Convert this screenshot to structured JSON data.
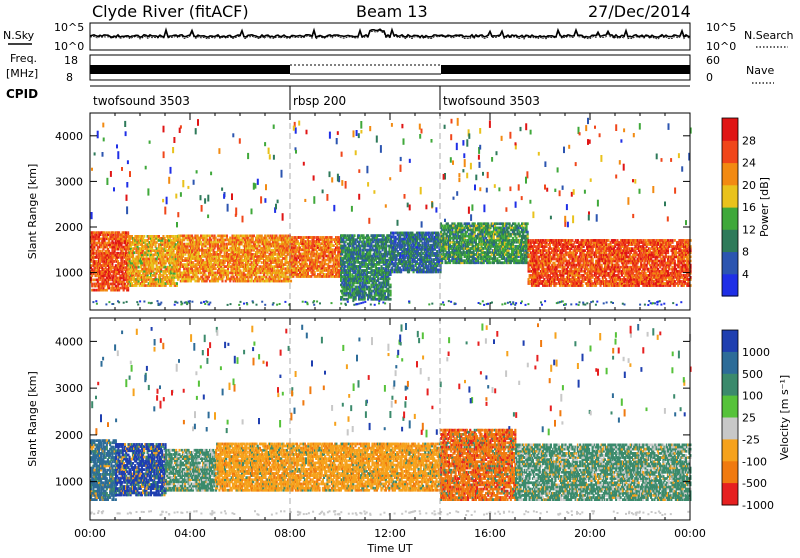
{
  "header": {
    "station": "Clyde River (fitACF)",
    "beam": "Beam 13",
    "date": "27/Dec/2014"
  },
  "noise_panel": {
    "left_label": "N.Sky",
    "left_ticks": [
      "10^5",
      "10^0"
    ],
    "right_ticks": [
      "10^5",
      "10^0"
    ],
    "right_label": "N.Search"
  },
  "freq_panel": {
    "left_label_line1": "Freq.",
    "left_label_line2": "[MHz]",
    "left_ticks": [
      "18",
      "8"
    ],
    "right_ticks": [
      "60",
      "0"
    ],
    "right_label": "Nave"
  },
  "cpid_panel": {
    "label": "CPID",
    "segments": [
      {
        "name": "twofsound 3503",
        "start_hour": 0,
        "end_hour": 8
      },
      {
        "name": "rbsp 200",
        "start_hour": 8,
        "end_hour": 14
      },
      {
        "name": "twofsound 3503",
        "start_hour": 14,
        "end_hour": 24
      }
    ]
  },
  "x_axis": {
    "label": "Time UT",
    "ticks": [
      "00:00",
      "04:00",
      "08:00",
      "12:00",
      "16:00",
      "20:00",
      "00:00"
    ]
  },
  "chart_data": [
    {
      "type": "heatmap",
      "title": "Power",
      "ylabel": "Slant Range [km]",
      "yticks": [
        "1000",
        "2000",
        "3000",
        "4000"
      ],
      "ylim": [
        180,
        4500
      ],
      "xlim_hours": [
        0,
        24
      ],
      "colorbar": {
        "label": "Power [dB]",
        "ticks": [
          "4",
          "8",
          "12",
          "16",
          "20",
          "24",
          "28"
        ],
        "range": [
          0,
          32
        ],
        "colors": [
          "#1f2fe6",
          "#2c55b0",
          "#2e7a5a",
          "#3fa83a",
          "#e9c21c",
          "#f28a12",
          "#f0461a",
          "#e01515"
        ]
      },
      "values": [
        {
          "start_hour": 0.0,
          "end_hour": 1.5,
          "range_km": [
            600,
            1900
          ],
          "level": 26
        },
        {
          "start_hour": 1.5,
          "end_hour": 3.5,
          "range_km": [
            700,
            1800
          ],
          "level": 20
        },
        {
          "start_hour": 3.5,
          "end_hour": 8.0,
          "range_km": [
            800,
            1800
          ],
          "level": 22
        },
        {
          "start_hour": 8.0,
          "end_hour": 10.0,
          "range_km": [
            900,
            1800
          ],
          "level": 24
        },
        {
          "start_hour": 10.0,
          "end_hour": 12.0,
          "range_km": [
            400,
            1800
          ],
          "level": 10
        },
        {
          "start_hour": 12.0,
          "end_hour": 14.0,
          "range_km": [
            1000,
            1900
          ],
          "level": 8
        },
        {
          "start_hour": 14.0,
          "end_hour": 17.5,
          "range_km": [
            1200,
            2100
          ],
          "level": 12
        },
        {
          "start_hour": 17.5,
          "end_hour": 24.0,
          "range_km": [
            700,
            1700
          ],
          "level": 26
        }
      ]
    },
    {
      "type": "heatmap",
      "title": "Velocity",
      "ylabel": "Slant Range [km]",
      "yticks": [
        "1000",
        "2000",
        "3000",
        "4000"
      ],
      "ylim": [
        180,
        4500
      ],
      "xlim_hours": [
        0,
        24
      ],
      "colorbar": {
        "label": "Velocity [m s⁻¹]",
        "ticks": [
          "1000",
          "500",
          "100",
          "25",
          "-25",
          "-100",
          "-500",
          "-1000"
        ],
        "colors": [
          "#1f3fb0",
          "#2d6c98",
          "#3b8a6c",
          "#56c23a",
          "#c8c8c8",
          "#f6a21c",
          "#f07a10",
          "#e62020"
        ]
      },
      "values": [
        {
          "start_hour": 0.0,
          "end_hour": 1.0,
          "range_km": [
            600,
            1900
          ],
          "velocity": 500
        },
        {
          "start_hour": 1.0,
          "end_hour": 3.0,
          "range_km": [
            700,
            1800
          ],
          "velocity": 1000
        },
        {
          "start_hour": 3.0,
          "end_hour": 5.0,
          "range_km": [
            800,
            1700
          ],
          "velocity": 100
        },
        {
          "start_hour": 5.0,
          "end_hour": 14.0,
          "range_km": [
            800,
            1800
          ],
          "velocity": -100
        },
        {
          "start_hour": 14.0,
          "end_hour": 17.0,
          "range_km": [
            600,
            2100
          ],
          "velocity": -500
        },
        {
          "start_hour": 17.0,
          "end_hour": 24.0,
          "range_km": [
            600,
            1800
          ],
          "velocity": 100
        }
      ]
    }
  ]
}
